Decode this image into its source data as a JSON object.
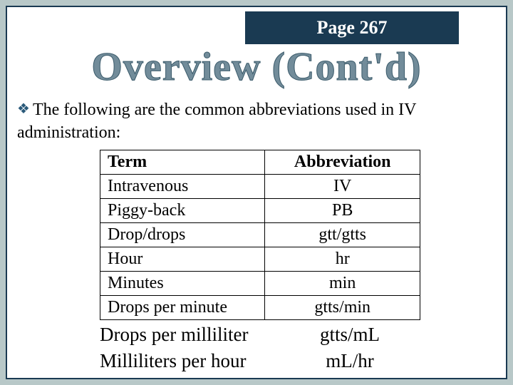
{
  "page_banner": "Page 267",
  "title": "Overview (Cont'd)",
  "intro_text": "The following are the common abbreviations used in IV administration:",
  "table": {
    "header": {
      "term": "Term",
      "abbreviation": "Abbreviation"
    },
    "rows": [
      {
        "term": "Intravenous",
        "abbreviation": "IV"
      },
      {
        "term": "Piggy-back",
        "abbreviation": "PB"
      },
      {
        "term": "Drop/drops",
        "abbreviation": "gtt/gtts"
      },
      {
        "term": "Hour",
        "abbreviation": "hr"
      },
      {
        "term": "Minutes",
        "abbreviation": "min"
      },
      {
        "term": "Drops per minute",
        "abbreviation": "gtts/min"
      }
    ],
    "extra_rows": [
      {
        "term": "Drops per milliliter",
        "abbreviation": "gtts/mL"
      },
      {
        "term": "Milliliters per hour",
        "abbreviation": "mL/hr"
      }
    ]
  },
  "colors": {
    "slide_bg": "#ffffff",
    "body_bg": "#b8c8c8",
    "frame_border": "#1a3a52",
    "banner_bg": "#1a3a52",
    "banner_text": "#ffffff",
    "title_fill": "#728c9a",
    "title_stroke": "#3a5a6a",
    "bullet_color": "#2a5a7a",
    "text_color": "#000000",
    "table_border": "#000000"
  }
}
